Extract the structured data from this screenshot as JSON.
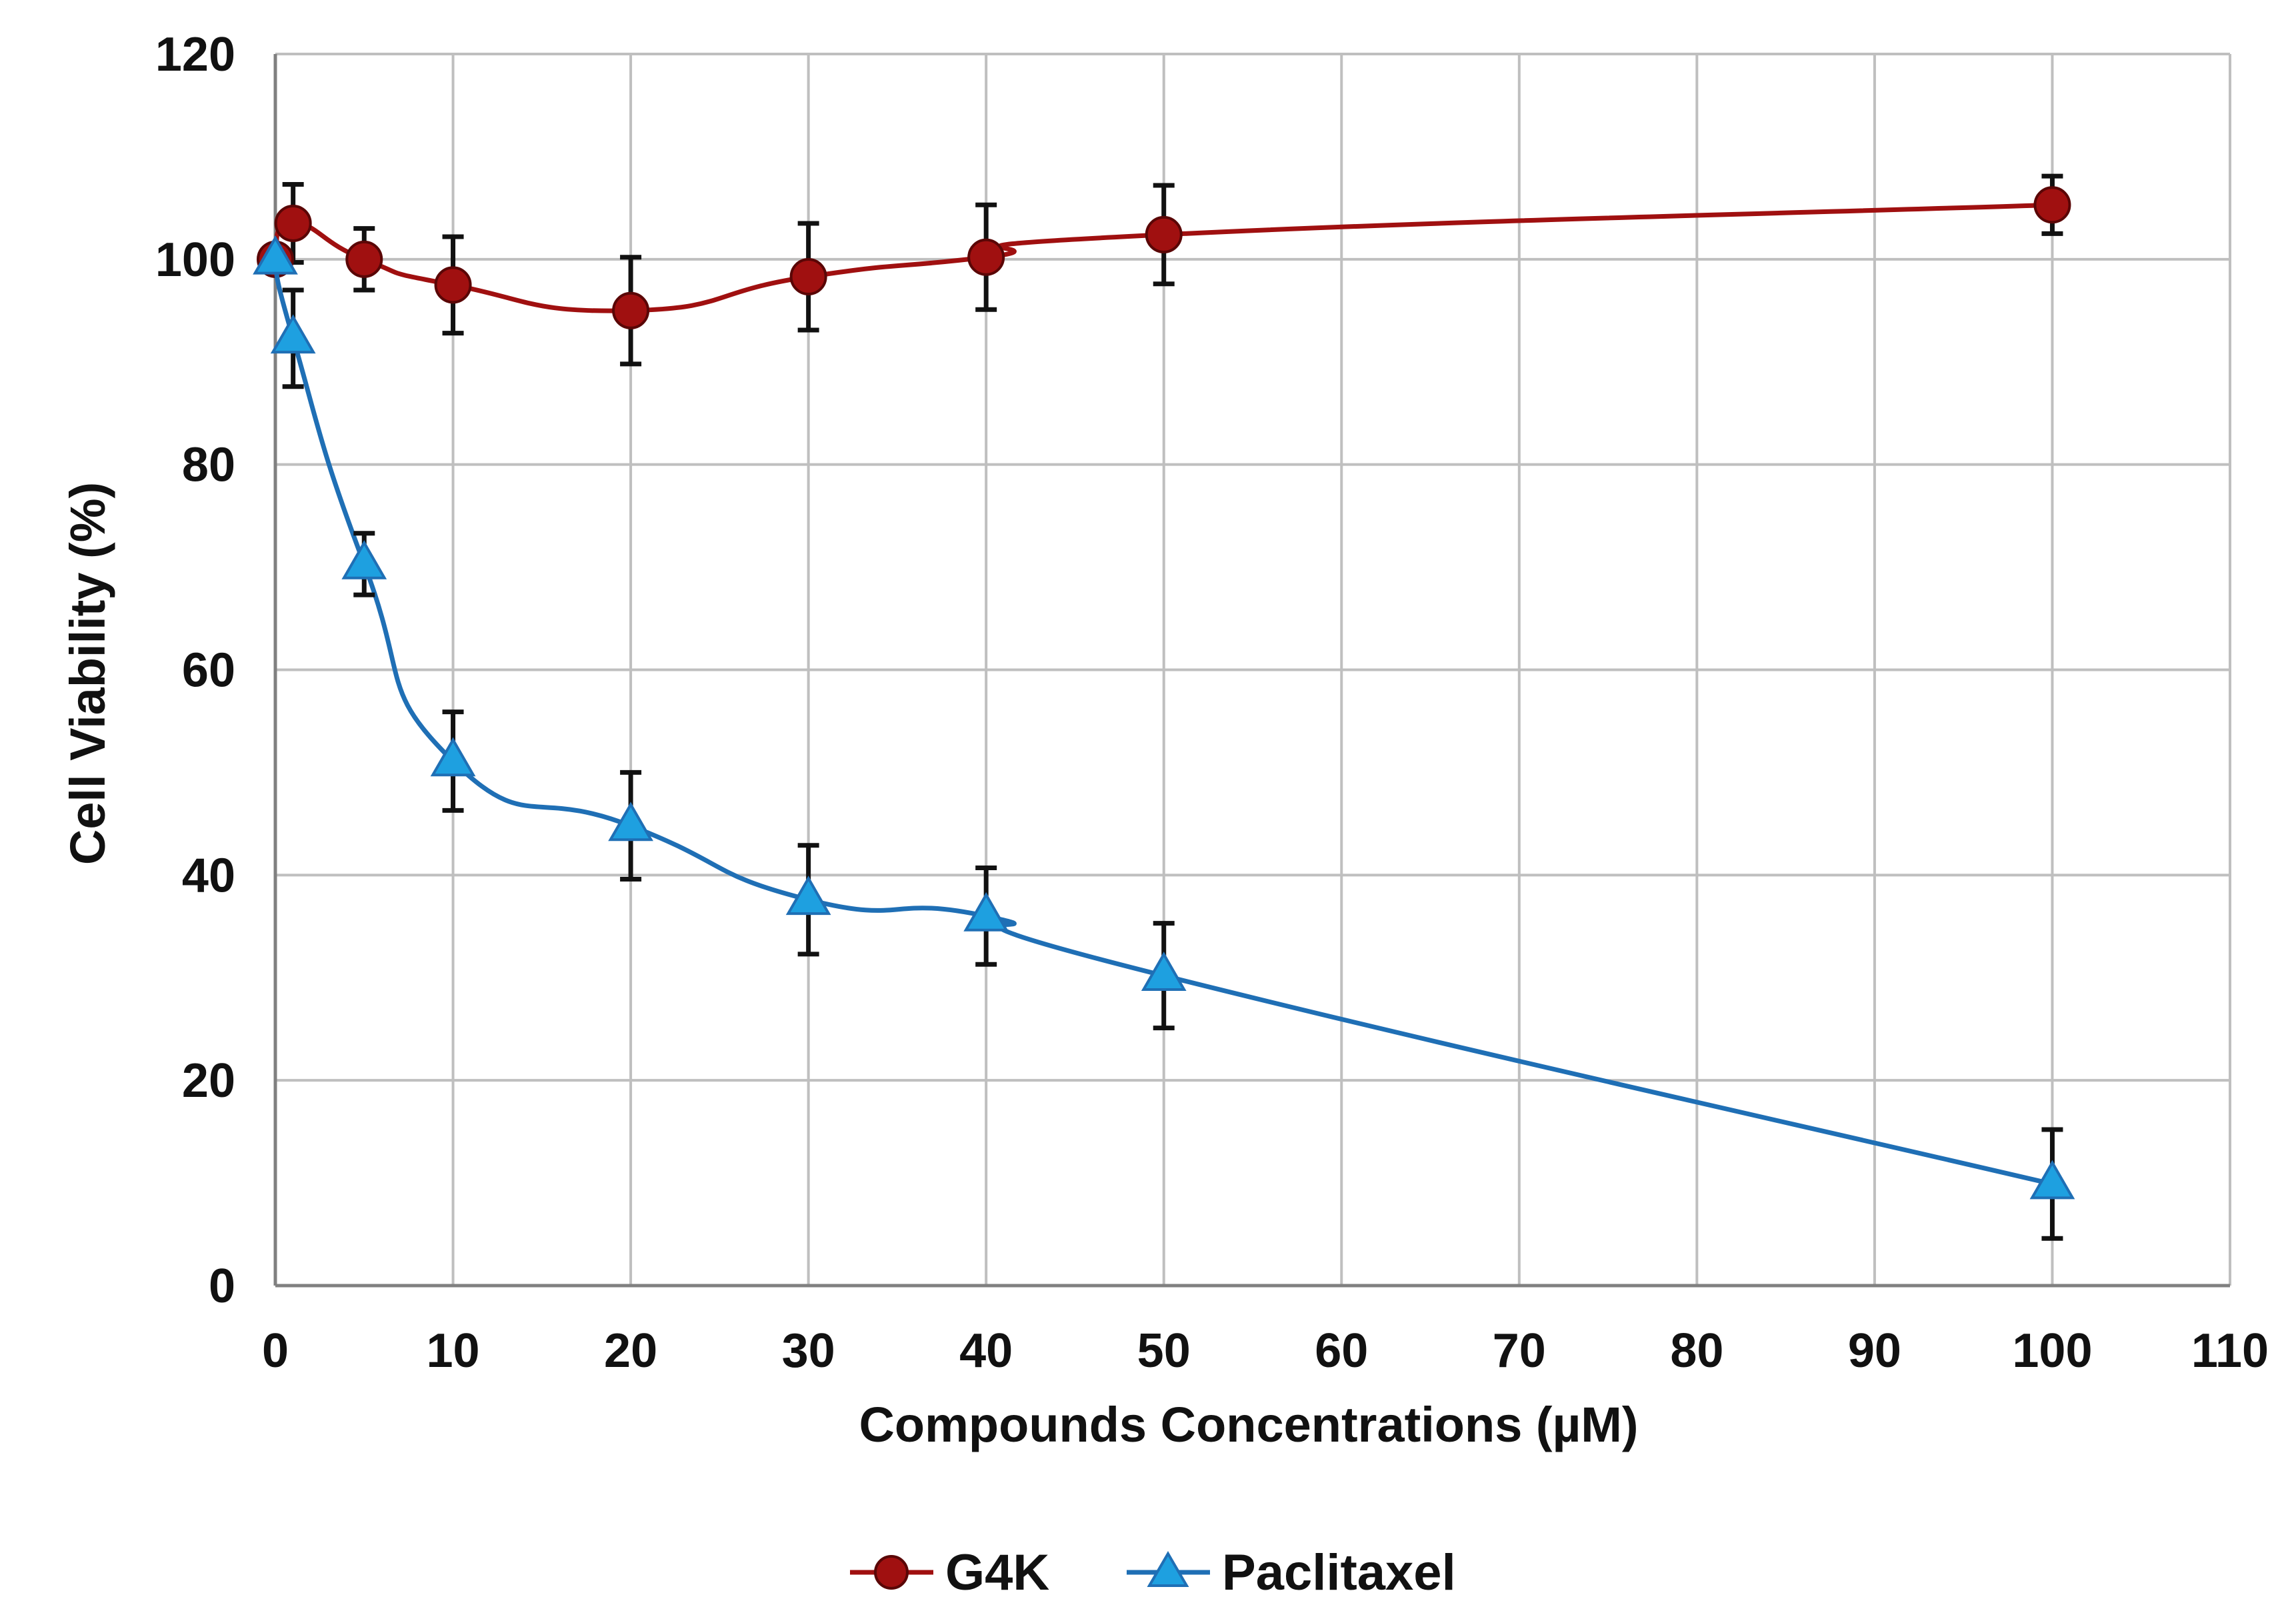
{
  "chart_data": {
    "type": "line",
    "title": "",
    "xlabel": "Compounds  Concentrations (µM)",
    "ylabel": "Cell Viability (%)",
    "xlim": [
      0,
      110
    ],
    "ylim": [
      0,
      120
    ],
    "x_ticks": [
      0,
      10,
      20,
      30,
      40,
      50,
      60,
      70,
      80,
      90,
      100,
      110
    ],
    "y_ticks": [
      0,
      20,
      40,
      60,
      80,
      100,
      120
    ],
    "grid": true,
    "legend_position": "bottom-center",
    "x": [
      0,
      1,
      5,
      10,
      20,
      30,
      40,
      50,
      100
    ],
    "series": [
      {
        "name": "G4K",
        "color": "#a01010",
        "marker": "circle",
        "values": [
          100,
          103.5,
          100,
          97.5,
          95,
          98.3,
          100.2,
          102.4,
          105.3
        ],
        "errors": [
          0,
          3.8,
          3,
          4.7,
          5.2,
          5.2,
          5.1,
          4.8,
          2.8
        ]
      },
      {
        "name": "Paclitaxel",
        "color": "#1f6fb5",
        "marker_color": "#1ea0e0",
        "marker": "triangle",
        "values": [
          100,
          92.3,
          70.3,
          51.1,
          44.8,
          37.6,
          36,
          30.2,
          9.9
        ],
        "errors": [
          0,
          4.7,
          3,
          4.8,
          5.2,
          5.3,
          4.7,
          5.1,
          5.3
        ]
      }
    ]
  }
}
